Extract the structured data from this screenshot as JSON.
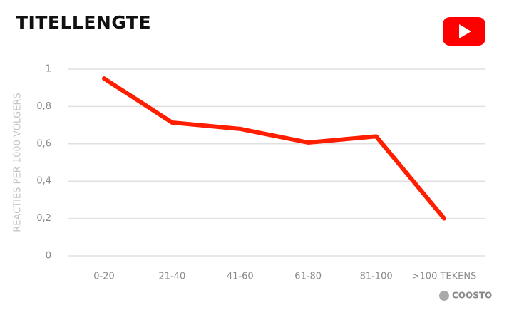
{
  "chart_data": {
    "type": "line",
    "title": "TITELLENGTE",
    "y_label": "REACTIES PER 1000 VOLGERS",
    "categories": [
      "0-20",
      "21-40",
      "41-60",
      "61-80",
      "81-100",
      ">100 TEKENS"
    ],
    "series": [
      {
        "name": "Reacties",
        "color": "#ff1f00",
        "values": [
          0.95,
          0.714,
          0.68,
          0.607,
          0.64,
          0.2
        ]
      }
    ],
    "ylim": [
      0,
      1
    ],
    "yticks": [
      0,
      {
        "value": 0.2,
        "label": "0,2"
      },
      {
        "value": 0.4,
        "label": "0,4"
      },
      {
        "value": 0.6,
        "label": "0,6"
      },
      {
        "value": 0.8,
        "label": "0,8"
      },
      1
    ],
    "grid": true,
    "brand": "COOSTO"
  }
}
